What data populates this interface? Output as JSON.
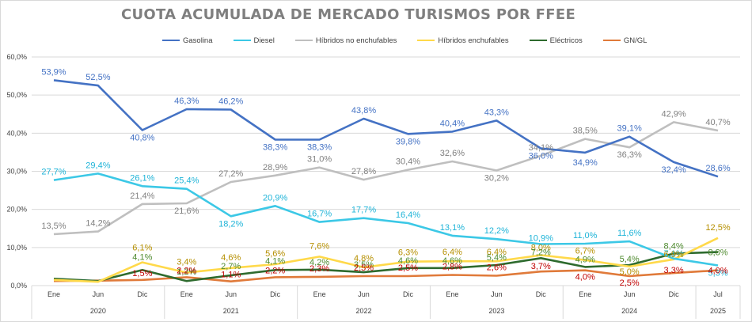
{
  "chart_data": {
    "type": "line",
    "title": "CUOTA ACUMULADA DE MERCADO TURISMOS POR FFEE",
    "xlabel": "",
    "ylabel": "",
    "ylim": [
      0,
      60
    ],
    "y_ticks": [
      "0,0%",
      "10,0%",
      "20,0%",
      "30,0%",
      "40,0%",
      "50,0%",
      "60,0%"
    ],
    "grid": true,
    "legend_position": "top",
    "categories": [
      "Ene",
      "Jun",
      "Dic",
      "Ene",
      "Jun",
      "Dic",
      "Ene",
      "Jun",
      "Dic",
      "Ene",
      "Jun",
      "Dic",
      "Ene",
      "Jun",
      "Dic",
      "Jul"
    ],
    "year_groups": [
      {
        "label": "2020",
        "start": 0,
        "end": 2
      },
      {
        "label": "2021",
        "start": 3,
        "end": 5
      },
      {
        "label": "2022",
        "start": 6,
        "end": 8
      },
      {
        "label": "2023",
        "start": 9,
        "end": 11
      },
      {
        "label": "2024",
        "start": 12,
        "end": 14
      },
      {
        "label": "2025",
        "start": 15,
        "end": 15
      }
    ],
    "series": [
      {
        "name": "Gasolina",
        "color": "#4472c4",
        "label_color": "#4472c4",
        "values": [
          53.9,
          52.5,
          40.8,
          46.3,
          46.2,
          38.3,
          38.3,
          43.8,
          39.8,
          40.4,
          43.3,
          36.0,
          34.9,
          39.1,
          32.4,
          28.6
        ],
        "labels": [
          "53,9%",
          "52,5%",
          "40,8%",
          "46,3%",
          "46,2%",
          "38,3%",
          "38,3%",
          "43,8%",
          "39,8%",
          "40,4%",
          "43,3%",
          "36,0%",
          "34,9%",
          "39,1%",
          "32,4%",
          "28,6%"
        ]
      },
      {
        "name": "Diesel",
        "color": "#3cc8e6",
        "label_color": "#1fb4d8",
        "values": [
          27.7,
          29.4,
          26.1,
          25.4,
          18.2,
          20.9,
          16.7,
          17.7,
          16.4,
          13.1,
          12.2,
          10.9,
          11.0,
          11.6,
          7.1,
          5.3
        ],
        "labels": [
          "27,7%",
          "29,4%",
          "26,1%",
          "25,4%",
          "18,2%",
          "20,9%",
          "16,7%",
          "17,7%",
          "16,4%",
          "13,1%",
          "12,2%",
          "10,9%",
          "11,0%",
          "11,6%",
          "7,1%",
          "5,3%"
        ]
      },
      {
        "name": "Híbridos no enchufables",
        "color": "#bfbfbf",
        "label_color": "#808080",
        "values": [
          13.5,
          14.2,
          21.4,
          21.6,
          27.2,
          28.9,
          31.0,
          27.8,
          30.4,
          32.6,
          30.2,
          34.1,
          38.5,
          36.3,
          42.9,
          40.7
        ],
        "labels": [
          "13,5%",
          "14,2%",
          "21,4%",
          "21,6%",
          "27,2%",
          "28,9%",
          "31,0%",
          "27,8%",
          "30,4%",
          "32,6%",
          "30,2%",
          "34,1%",
          "38,5%",
          "36,3%",
          "42,9%",
          "40,7%"
        ]
      },
      {
        "name": "Híbridos enchufables",
        "color": "#ffd94a",
        "label_color": "#b58f00",
        "values": [
          1.5,
          1.0,
          6.1,
          3.4,
          4.6,
          5.6,
          7.6,
          4.8,
          6.3,
          6.4,
          6.4,
          8.0,
          6.7,
          5.0,
          6.9,
          12.5
        ],
        "labels": [
          "",
          "",
          "6,1%",
          "3,4%",
          "4,6%",
          "5,6%",
          "7,6%",
          "4,8%",
          "6,3%",
          "6,4%",
          "6,4%",
          "8,0%",
          "6,7%",
          "5,0%",
          "6,9%",
          "12,5%"
        ]
      },
      {
        "name": "Eléctricos",
        "color": "#2e6b2e",
        "label_color": "#4e8a2e",
        "values": [
          1.8,
          1.2,
          4.1,
          1.2,
          2.7,
          4.1,
          4.2,
          3.5,
          4.6,
          4.6,
          5.4,
          7.2,
          4.9,
          5.4,
          8.4,
          8.8
        ],
        "labels": [
          "",
          "",
          "4,1%",
          "1,2%",
          "2,7%",
          "4,1%",
          "4,2%",
          "3,5%",
          "4,6%",
          "4,6%",
          "5,4%",
          "7,2%",
          "4,9%",
          "5,4%",
          "8,4%",
          "8,8%"
        ]
      },
      {
        "name": "GN/GL",
        "color": "#e07a3a",
        "label_color": "#c00000",
        "values": [
          1.2,
          1.3,
          1.5,
          2.2,
          1.1,
          2.2,
          2.3,
          2.5,
          2.5,
          2.8,
          2.6,
          3.7,
          4.0,
          2.5,
          3.3,
          4.0
        ],
        "labels": [
          "",
          "",
          "1,5%",
          "2,2%",
          "1,1%",
          "2,2%",
          "2,3%",
          "2,5%",
          "2,5%",
          "2,8%",
          "2,6%",
          "3,7%",
          "4,0%",
          "2,5%",
          "3,3%",
          "4,0%"
        ]
      }
    ]
  }
}
